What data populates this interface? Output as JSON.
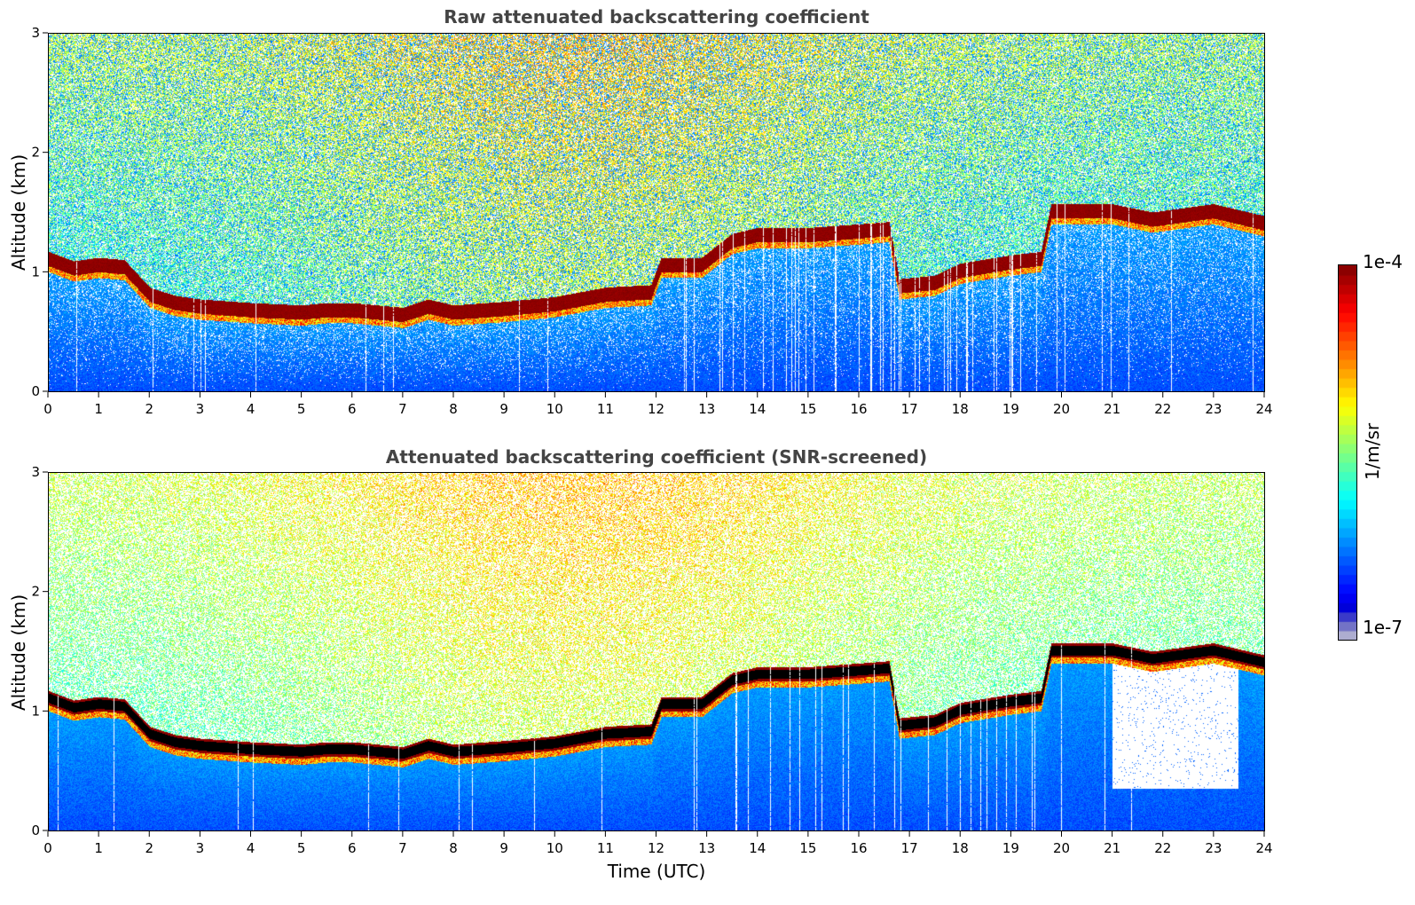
{
  "chart_data": [
    {
      "type": "heatmap",
      "title": "Raw attenuated backscattering coefficient",
      "xlabel": "",
      "ylabel": "Altitude (km)",
      "xlim": [
        0,
        24
      ],
      "ylim": [
        0,
        3
      ],
      "xticks": [
        "0",
        "1",
        "2",
        "3",
        "4",
        "5",
        "6",
        "7",
        "8",
        "9",
        "10",
        "11",
        "12",
        "13",
        "14",
        "15",
        "16",
        "17",
        "18",
        "19",
        "20",
        "21",
        "22",
        "23",
        "24"
      ],
      "yticks": [
        "0",
        "1",
        "2",
        "3"
      ],
      "screened": false,
      "cloud_base_km": {
        "time_utc": [
          0,
          0.5,
          1,
          1.5,
          2,
          2.5,
          3,
          4,
          5,
          5.5,
          6,
          6.5,
          7,
          7.5,
          8,
          9,
          10,
          11,
          11.9,
          12.1,
          12.9,
          13.5,
          14,
          15,
          16,
          16.6,
          16.8,
          17.5,
          18,
          19,
          19.6,
          19.8,
          21,
          21.8,
          23,
          24
        ],
        "altitude_km": [
          1.05,
          0.97,
          1.0,
          0.98,
          0.75,
          0.68,
          0.65,
          0.62,
          0.6,
          0.62,
          0.62,
          0.6,
          0.58,
          0.65,
          0.6,
          0.63,
          0.67,
          0.75,
          0.77,
          1.0,
          1.0,
          1.2,
          1.25,
          1.25,
          1.28,
          1.3,
          0.82,
          0.85,
          0.95,
          1.02,
          1.05,
          1.45,
          1.45,
          1.38,
          1.45,
          1.35
        ]
      }
    },
    {
      "type": "heatmap",
      "title": "Attenuated backscattering coefficient (SNR-screened)",
      "xlabel": "Time (UTC)",
      "ylabel": "Altitude (km)",
      "xlim": [
        0,
        24
      ],
      "ylim": [
        0,
        3
      ],
      "xticks": [
        "0",
        "1",
        "2",
        "3",
        "4",
        "5",
        "6",
        "7",
        "8",
        "9",
        "10",
        "11",
        "12",
        "13",
        "14",
        "15",
        "16",
        "17",
        "18",
        "19",
        "20",
        "21",
        "22",
        "23",
        "24"
      ],
      "yticks": [
        "0",
        "1",
        "2",
        "3"
      ],
      "screened": true,
      "cloud_base_km": {
        "time_utc": [
          0,
          0.5,
          1,
          1.5,
          2,
          2.5,
          3,
          4,
          5,
          5.5,
          6,
          6.5,
          7,
          7.5,
          8,
          9,
          10,
          11,
          11.9,
          12.1,
          12.9,
          13.5,
          14,
          15,
          16,
          16.6,
          16.8,
          17.5,
          18,
          19,
          19.6,
          19.8,
          21,
          21.8,
          23,
          24
        ],
        "altitude_km": [
          1.05,
          0.97,
          1.0,
          0.98,
          0.75,
          0.68,
          0.65,
          0.62,
          0.6,
          0.62,
          0.62,
          0.6,
          0.58,
          0.65,
          0.6,
          0.63,
          0.67,
          0.75,
          0.77,
          1.0,
          1.0,
          1.2,
          1.25,
          1.25,
          1.28,
          1.3,
          0.82,
          0.85,
          0.95,
          1.02,
          1.05,
          1.45,
          1.45,
          1.38,
          1.45,
          1.35
        ]
      }
    }
  ],
  "colorbar": {
    "label": "1/m/sr",
    "max_label": "1e-4",
    "min_label": "1e-7",
    "range": [
      1e-07,
      0.0001
    ],
    "scale": "log",
    "colormap": "jet"
  }
}
